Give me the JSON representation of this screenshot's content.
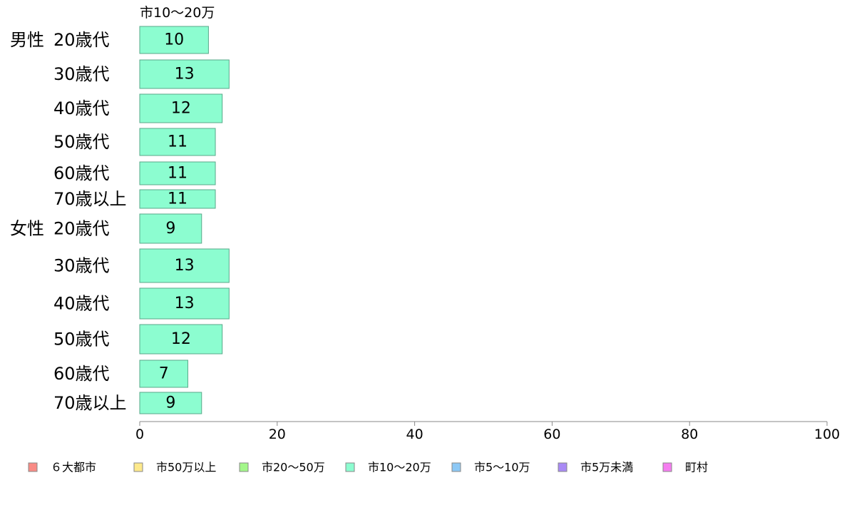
{
  "chart_data": {
    "type": "bar",
    "orientation": "horizontal",
    "series_header": "市10〜20万",
    "groups": [
      {
        "label": "男性",
        "categories": [
          "20歳代",
          "30歳代",
          "40歳代",
          "50歳代",
          "60歳代",
          "70歳以上"
        ],
        "values": [
          10,
          13,
          12,
          11,
          11,
          11
        ]
      },
      {
        "label": "女性",
        "categories": [
          "20歳代",
          "30歳代",
          "40歳代",
          "50歳代",
          "60歳代",
          "70歳以上"
        ],
        "values": [
          9,
          13,
          13,
          12,
          7,
          9
        ]
      }
    ],
    "xlim": [
      0,
      100
    ],
    "x_ticks": [
      0,
      20,
      40,
      60,
      80,
      100
    ],
    "grid": false,
    "legend_position": "bottom",
    "legend": [
      {
        "label": "６大都市",
        "color": "#f98b85"
      },
      {
        "label": "市50万以上",
        "color": "#fde98b"
      },
      {
        "label": "市20〜50万",
        "color": "#a3f78a"
      },
      {
        "label": "市10〜20万",
        "color": "#8cfdd0"
      },
      {
        "label": "市5〜10万",
        "color": "#8cc8f5"
      },
      {
        "label": "市5万未満",
        "color": "#a98af5"
      },
      {
        "label": "町村",
        "color": "#f57df0"
      }
    ],
    "bar_color": "#8cfdd0",
    "bar_stroke": "#5aa88a"
  }
}
